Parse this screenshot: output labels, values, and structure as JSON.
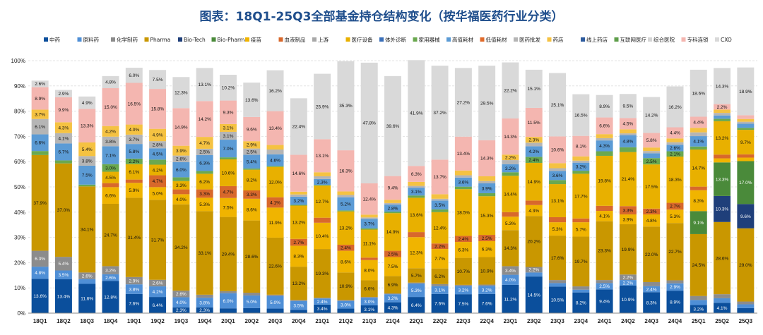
{
  "chart_data": {
    "type": "bar",
    "stacked": true,
    "title": "图表：18Q1-25Q3全部基金持仓结构变化（按华福医药行业分类）",
    "categories": [
      "18Q1",
      "18Q2",
      "18Q3",
      "18Q4",
      "19Q1",
      "19Q2",
      "19Q3",
      "19Q4",
      "20Q1",
      "20Q2",
      "20Q3",
      "20Q4",
      "21Q1",
      "21Q2",
      "21Q3",
      "21Q4",
      "22Q1",
      "22Q2",
      "22Q3",
      "22Q4",
      "23Q1",
      "23Q2",
      "23Q3",
      "23Q4",
      "24Q1",
      "24Q2",
      "24Q3",
      "24Q4",
      "25Q1",
      "25Q2",
      "25Q3"
    ],
    "y_tick_labels": [
      "0%",
      "10%",
      "20%",
      "30%",
      "40%",
      "50%",
      "60%",
      "70%",
      "80%",
      "90%",
      "100%"
    ],
    "ylim": [
      0,
      100
    ],
    "legend_position": "top",
    "series": [
      {
        "name": "中药",
        "color": "#0b4f9c",
        "values": [
          13.6,
          13.4,
          11.6,
          12.8,
          7.6,
          6.4,
          2.3,
          2.3,
          1.9,
          2.0,
          1.8,
          1.3,
          3.4,
          1.8,
          3.1,
          4.3,
          6.4,
          7.6,
          7.5,
          7.6,
          11.2,
          14.5,
          10.5,
          8.2,
          9.4,
          10.9,
          8.3,
          8.9,
          3.2,
          4.1,
          2.0
        ]
      },
      {
        "name": "原料药",
        "color": "#4f8fd6",
        "values": [
          4.8,
          3.5,
          1.9,
          2.6,
          3.8,
          4.2,
          4.0,
          3.8,
          6.0,
          5.0,
          5.0,
          3.5,
          2.4,
          3.0,
          3.0,
          3.2,
          5.3,
          3.1,
          3.2,
          3.2,
          4.0,
          1.6,
          1.4,
          1.1,
          2.5,
          2.2,
          2.4,
          2.9,
          2.0,
          1.8,
          1.5
        ]
      },
      {
        "name": "化学制药",
        "color": "#8c8c8c",
        "values": [
          6.3,
          5.4,
          2.6,
          3.2,
          2.9,
          2.6,
          2.6,
          1.2,
          0.8,
          1.1,
          0.5,
          0.4,
          0.3,
          0.4,
          0.3,
          0.3,
          0.4,
          0.8,
          0.5,
          0.5,
          3.4,
          2.2,
          1.2,
          1.3,
          1.2,
          2.2,
          1.6,
          1.2,
          1.6,
          1.6,
          1.1
        ]
      },
      {
        "name": "Pharma",
        "color": "#c99700",
        "values": [
          37.9,
          37.0,
          34.1,
          24.7,
          31.4,
          31.7,
          34.2,
          33.1,
          29.4,
          28.6,
          22.6,
          13.2,
          19.3,
          10.9,
          6.6,
          6.9,
          5.7,
          6.2,
          10.7,
          10.9,
          14.3,
          20.2,
          17.6,
          19.7,
          23.3,
          19.9,
          22.0,
          22.7,
          24.5,
          28.6,
          29.0
        ]
      },
      {
        "name": "Bio-Tech",
        "color": "#1f3f7a",
        "values": [
          0.0,
          0.0,
          0.0,
          0.0,
          0.0,
          0.0,
          0.0,
          0.0,
          0.0,
          0.0,
          0.0,
          0.0,
          0.0,
          0.0,
          0.0,
          0.0,
          0.0,
          0.0,
          0.0,
          0.0,
          0.0,
          0.0,
          0.0,
          0.0,
          0.0,
          0.0,
          0.0,
          0.0,
          0.0,
          10.3,
          9.6
        ]
      },
      {
        "name": "Bio-Pharma",
        "color": "#4a8a3a",
        "values": [
          0.0,
          0.0,
          0.0,
          0.0,
          0.0,
          0.0,
          0.0,
          0.0,
          0.0,
          0.0,
          0.0,
          0.0,
          0.0,
          0.0,
          0.0,
          0.0,
          0.0,
          0.0,
          0.0,
          0.0,
          0.0,
          0.0,
          0.0,
          0.0,
          0.0,
          0.0,
          0.0,
          0.0,
          9.1,
          13.3,
          17.0
        ]
      },
      {
        "name": "疫苗",
        "color": "#f0b400",
        "values": [
          0.0,
          0.0,
          0.0,
          6.6,
          5.9,
          5.0,
          4.0,
          5.3,
          7.5,
          8.6,
          11.9,
          8.3,
          10.4,
          8.6,
          8.0,
          7.5,
          12.3,
          7.7,
          6.3,
          6.3,
          5.3,
          4.3,
          5.3,
          5.7,
          4.1,
          3.9,
          4.8,
          5.3,
          8.3,
          1.6,
          1.4
        ]
      },
      {
        "name": "血液制品",
        "color": "#d8682b",
        "values": [
          0.0,
          0.0,
          0.0,
          1.6,
          1.3,
          4.7,
          1.9,
          3.3,
          4.7,
          3.3,
          4.1,
          2.7,
          2.0,
          2.4,
          1.0,
          2.5,
          2.0,
          2.2,
          2.4,
          2.5,
          1.8,
          1.8,
          2.0,
          1.5,
          2.0,
          3.3,
          2.3,
          2.7,
          1.4,
          1.5,
          1.3
        ]
      },
      {
        "name": "上游",
        "color": "#a8a8a8",
        "values": [
          0.0,
          0.0,
          0.0,
          0.0,
          0.0,
          0.0,
          0.0,
          0.0,
          0.0,
          0.0,
          0.0,
          0.0,
          0.0,
          0.0,
          0.0,
          0.0,
          0.0,
          0.0,
          0.0,
          0.0,
          0.0,
          0.0,
          0.0,
          0.0,
          0.0,
          0.0,
          0.0,
          0.0,
          0.0,
          0.0,
          0.0
        ]
      },
      {
        "name": "医疗设备",
        "color": "#e8b000",
        "values": [
          0.0,
          0.0,
          0.0,
          4.5,
          6.1,
          4.2,
          3.3,
          6.2,
          10.6,
          8.2,
          12.0,
          13.2,
          12.7,
          13.2,
          11.1,
          14.9,
          13.6,
          12.4,
          18.5,
          15.3,
          14.4,
          14.9,
          13.1,
          17.7,
          19.8,
          21.4,
          17.5,
          18.3,
          14.7,
          13.2,
          9.7
        ]
      },
      {
        "name": "体外诊断",
        "color": "#3a6fb8",
        "values": [
          0.0,
          0.0,
          0.0,
          0.0,
          0.0,
          0.0,
          0.0,
          0.0,
          0.0,
          0.0,
          0.0,
          0.0,
          0.0,
          0.0,
          0.0,
          0.0,
          0.0,
          0.0,
          0.0,
          0.0,
          0.0,
          0.0,
          0.0,
          0.0,
          0.0,
          0.0,
          0.0,
          0.0,
          0.0,
          0.0,
          0.0
        ]
      },
      {
        "name": "家用器械",
        "color": "#6aa84f",
        "values": [
          1.6,
          1.2,
          0.7,
          3.0,
          2.2,
          2.0,
          1.5,
          1.1,
          0.8,
          0.5,
          0.4,
          0.3,
          0.3,
          0.4,
          0.5,
          0.6,
          0.9,
          1.1,
          1.0,
          1.2,
          1.4,
          2.4,
          1.6,
          1.2,
          1.8,
          1.9,
          2.5,
          2.1,
          1.2,
          1.0,
          0.8
        ]
      },
      {
        "name": "高值耗材",
        "color": "#5b9bd5",
        "values": [
          6.6,
          6.7,
          7.5,
          7.1,
          5.8,
          4.5,
          6.0,
          6.3,
          7.0,
          5.4,
          4.6,
          3.2,
          2.3,
          5.2,
          3.7,
          2.8,
          3.1,
          3.5,
          3.6,
          3.9,
          3.2,
          4.2,
          3.6,
          3.2,
          4.3,
          4.8,
          1.9,
          2.6,
          4.1,
          1.3,
          1.6
        ]
      },
      {
        "name": "低值耗材",
        "color": "#e06a2a",
        "values": [
          0.0,
          0.0,
          0.0,
          0.0,
          0.0,
          0.0,
          0.0,
          0.0,
          0.0,
          0.0,
          0.0,
          0.0,
          0.0,
          0.0,
          0.0,
          0.0,
          0.0,
          0.0,
          0.0,
          0.0,
          0.0,
          0.0,
          0.0,
          0.0,
          0.0,
          0.0,
          0.0,
          0.0,
          0.0,
          0.0,
          0.0
        ]
      },
      {
        "name": "医药批发",
        "color": "#b5b5b5",
        "values": [
          6.1,
          4.1,
          3.8,
          3.8,
          3.7,
          2.8,
          2.6,
          2.5,
          3.1,
          2.5,
          1.9,
          0.9,
          1.1,
          0.9,
          0.6,
          0.6,
          0.7,
          0.7,
          0.9,
          0.9,
          1.6,
          1.4,
          1.1,
          0.8,
          0.9,
          0.7,
          0.9,
          1.0,
          1.5,
          1.0,
          0.8
        ]
      },
      {
        "name": "药店",
        "color": "#f5c242",
        "values": [
          3.7,
          4.3,
          5.4,
          4.2,
          4.0,
          4.9,
          3.9,
          4.7,
          3.1,
          2.9,
          1.8,
          1.1,
          1.6,
          1.4,
          1.1,
          1.3,
          1.6,
          1.8,
          1.9,
          1.9,
          2.2,
          2.3,
          2.0,
          1.7,
          1.6,
          1.6,
          1.4,
          1.5,
          1.8,
          1.3,
          1.1
        ]
      },
      {
        "name": "线上药店",
        "color": "#2e5c9e",
        "values": [
          0.0,
          0.0,
          0.0,
          0.0,
          0.0,
          0.0,
          0.0,
          0.0,
          0.0,
          0.0,
          0.0,
          0.0,
          0.0,
          0.0,
          0.0,
          0.0,
          0.0,
          0.0,
          0.0,
          0.0,
          0.0,
          0.0,
          0.0,
          0.0,
          0.0,
          0.0,
          0.0,
          0.0,
          0.0,
          0.0,
          0.0
        ]
      },
      {
        "name": "互联网医疗",
        "color": "#5e9e4a",
        "values": [
          0.0,
          0.0,
          0.0,
          0.0,
          0.0,
          0.0,
          0.0,
          0.0,
          0.0,
          0.0,
          0.0,
          0.0,
          0.0,
          0.0,
          0.0,
          0.0,
          0.0,
          0.0,
          0.0,
          0.0,
          0.0,
          0.0,
          0.0,
          0.0,
          0.0,
          0.0,
          0.0,
          0.0,
          0.0,
          0.0,
          0.0
        ]
      },
      {
        "name": "综合医院",
        "color": "#d6d6d6",
        "values": [
          0.0,
          0.0,
          0.0,
          0.0,
          0.0,
          0.0,
          0.0,
          0.0,
          0.0,
          0.0,
          0.0,
          0.0,
          0.0,
          0.0,
          0.0,
          0.0,
          0.0,
          0.0,
          0.0,
          0.0,
          0.0,
          0.0,
          0.0,
          0.0,
          0.0,
          0.0,
          0.0,
          0.0,
          0.0,
          0.0,
          0.0
        ]
      },
      {
        "name": "专科连锁",
        "color": "#f4b6b0",
        "values": [
          8.9,
          9.9,
          13.3,
          15.0,
          16.5,
          15.8,
          14.9,
          14.2,
          9.3,
          9.6,
          13.4,
          14.6,
          13.1,
          16.3,
          12.4,
          9.4,
          6.3,
          13.7,
          13.4,
          14.3,
          14.3,
          11.5,
          10.6,
          8.1,
          6.6,
          4.5,
          5.8,
          4.4,
          4.4,
          2.2,
          1.5
        ]
      },
      {
        "name": "CXO",
        "color": "#d9d9d9",
        "values": [
          2.6,
          2.9,
          4.9,
          4.8,
          6.0,
          7.5,
          12.3,
          13.1,
          10.2,
          13.6,
          16.2,
          22.4,
          25.9,
          35.3,
          47.8,
          39.6,
          41.9,
          37.2,
          27.2,
          29.5,
          22.2,
          15.1,
          25.1,
          16.5,
          8.9,
          9.5,
          14.2,
          16.2,
          18.6,
          14.3,
          18.9
        ]
      }
    ]
  }
}
